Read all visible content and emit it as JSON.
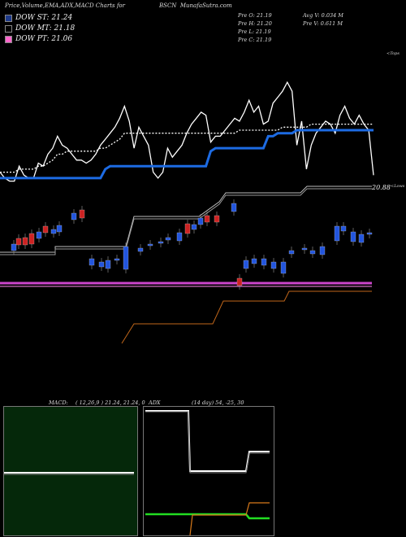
{
  "header": {
    "left": "Price,Volume,EMA,ADX,MACD Charts for",
    "symbol": "BSCN",
    "site": "MunafaSutra.com"
  },
  "legend": [
    {
      "label": "DOW ST: 21.24",
      "color": "#1e3a8a"
    },
    {
      "label": "DOW MT: 21.18",
      "color": "#000000"
    },
    {
      "label": "DOW PT: 21.06",
      "color": "#ff66cc"
    }
  ],
  "quote": {
    "o": "Pre   O: 21.19",
    "h": "Pre   H: 21.20",
    "l": "Pre   L: 21.19",
    "c": "Pre   C: 21.19",
    "avgv": "Avg V: 0.034   M",
    "prev": "Pre   V: 0.611 M"
  },
  "annotations": {
    "top": "<Tops",
    "lows": "<Lows",
    "price_label": "20.88"
  },
  "macd_panel": {
    "title": "MACD:",
    "params": "( 12,26,9 ) 21.24, 21.24, 0"
  },
  "adx_panel": {
    "title": "ADX",
    "params": "(14 day) 54, -25, 30"
  },
  "chart_data": {
    "type": "line",
    "series": [
      {
        "color": "#ffffff",
        "values": [
          21.05,
          21.03,
          21.02,
          21.02,
          21.07,
          21.04,
          21.03,
          21.03,
          21.08,
          21.07,
          21.11,
          21.13,
          21.17,
          21.14,
          21.13,
          21.11,
          21.09,
          21.09,
          21.08,
          21.09,
          21.11,
          21.14,
          21.16,
          21.18,
          21.2,
          21.23,
          21.27,
          21.22,
          21.13,
          21.2,
          21.17,
          21.14,
          21.05,
          21.03,
          21.05,
          21.13,
          21.1,
          21.12,
          21.14,
          21.18,
          21.21,
          21.23,
          21.25,
          21.24,
          21.15,
          21.17,
          21.17,
          21.19,
          21.21,
          21.23,
          21.22,
          21.25,
          21.29,
          21.25,
          21.27,
          21.21,
          21.22,
          21.28,
          21.3,
          21.32,
          21.35,
          21.32,
          21.14,
          21.22,
          21.06,
          21.14,
          21.18,
          21.2,
          21.22,
          21.21,
          21.18,
          21.24,
          21.27,
          21.23,
          21.21,
          21.24,
          21.21,
          21.19,
          21.04
        ]
      },
      {
        "color": "#ffffff",
        "dashed": true,
        "values": [
          21.05,
          21.05,
          21.05,
          21.05,
          21.06,
          21.06,
          21.06,
          21.06,
          21.07,
          21.07,
          21.08,
          21.09,
          21.11,
          21.11,
          21.12,
          21.12,
          21.12,
          21.12,
          21.12,
          21.12,
          21.12,
          21.13,
          21.13,
          21.14,
          21.15,
          21.16,
          21.18,
          21.18,
          21.18,
          21.18,
          21.18,
          21.18,
          21.18,
          21.18,
          21.18,
          21.18,
          21.18,
          21.18,
          21.18,
          21.18,
          21.18,
          21.18,
          21.18,
          21.18,
          21.18,
          21.18,
          21.18,
          21.18,
          21.18,
          21.18,
          21.19,
          21.19,
          21.19,
          21.19,
          21.19,
          21.19,
          21.19,
          21.19,
          21.19,
          21.2,
          21.2,
          21.2,
          21.2,
          21.2,
          21.2,
          21.21,
          21.21,
          21.21,
          21.21,
          21.21,
          21.21,
          21.21,
          21.21,
          21.21,
          21.21,
          21.21,
          21.21,
          21.21,
          21.21
        ]
      },
      {
        "color": "#1d6be3",
        "values": [
          21.03,
          21.03,
          21.03,
          21.03,
          21.03,
          21.03,
          21.03,
          21.03,
          21.03,
          21.03,
          21.03,
          21.03,
          21.03,
          21.03,
          21.03,
          21.03,
          21.03,
          21.03,
          21.03,
          21.03,
          21.03,
          21.03,
          21.06,
          21.07,
          21.07,
          21.07,
          21.07,
          21.07,
          21.07,
          21.07,
          21.07,
          21.07,
          21.07,
          21.07,
          21.07,
          21.07,
          21.07,
          21.07,
          21.07,
          21.07,
          21.07,
          21.07,
          21.07,
          21.07,
          21.12,
          21.13,
          21.13,
          21.13,
          21.13,
          21.13,
          21.13,
          21.13,
          21.13,
          21.13,
          21.13,
          21.13,
          21.17,
          21.17,
          21.18,
          21.18,
          21.18,
          21.18,
          21.19,
          21.19,
          21.19,
          21.19,
          21.19,
          21.19,
          21.19,
          21.19,
          21.19,
          21.19,
          21.19,
          21.19,
          21.19,
          21.19,
          21.19,
          21.19,
          21.19
        ]
      }
    ],
    "grid": false
  }
}
